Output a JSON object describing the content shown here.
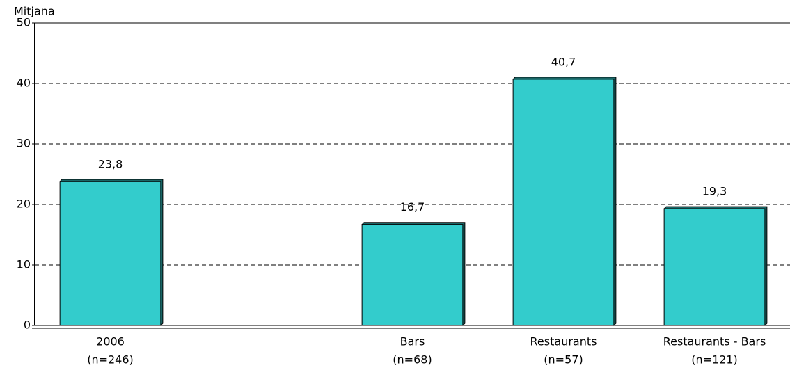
{
  "chart_data": {
    "type": "bar",
    "y_label": "Mitjana",
    "categories": [
      "2006",
      null,
      "Bars",
      "Restaurants",
      "Restaurants - Bars"
    ],
    "sample_sizes": [
      "(n=246)",
      null,
      "(n=68)",
      "(n=57)",
      "(n=121)"
    ],
    "values": [
      23.8,
      null,
      16.7,
      40.7,
      19.3
    ],
    "value_labels": [
      "23,8",
      null,
      "16,7",
      "40,7",
      "19,3"
    ],
    "color": "#33cccc",
    "ylim": [
      0,
      50
    ],
    "yticks": [
      0,
      10,
      20,
      30,
      40,
      50
    ],
    "grid": true
  }
}
